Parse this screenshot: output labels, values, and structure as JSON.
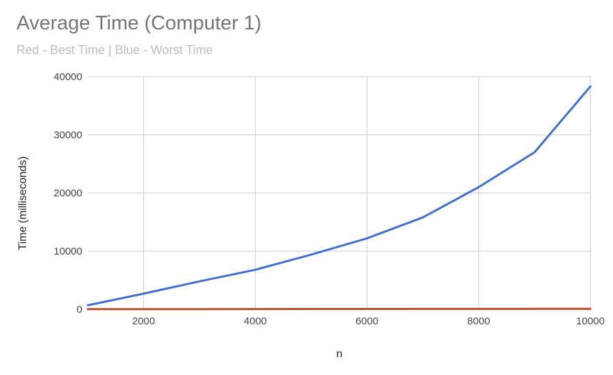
{
  "chart_data": {
    "type": "line",
    "title": "Average Time (Computer 1)",
    "subtitle": "Red - Best Time | Blue - Worst Time",
    "xlabel": "n",
    "ylabel": "Time (milliseconds)",
    "xlim": [
      1000,
      10000
    ],
    "ylim": [
      0,
      40000
    ],
    "x_ticks": [
      2000,
      4000,
      6000,
      8000,
      10000
    ],
    "y_ticks": [
      0,
      10000,
      20000,
      30000,
      40000
    ],
    "x_tick_labels": [
      "2000",
      "4000",
      "6000",
      "8000",
      "10000"
    ],
    "y_tick_labels": [
      "0",
      "10000",
      "20000",
      "30000",
      "40000"
    ],
    "grid": true,
    "x": [
      1000,
      2000,
      3000,
      4000,
      5000,
      6000,
      7000,
      8000,
      9000,
      10000
    ],
    "series": [
      {
        "color": "#3f6fd1",
        "values": [
          700,
          2700,
          4800,
          6800,
          9400,
          12200,
          15800,
          21000,
          27000,
          38300
        ]
      },
      {
        "color": "#bf4a2c",
        "values": [
          20,
          30,
          40,
          50,
          60,
          60,
          70,
          70,
          80,
          90
        ]
      }
    ]
  }
}
